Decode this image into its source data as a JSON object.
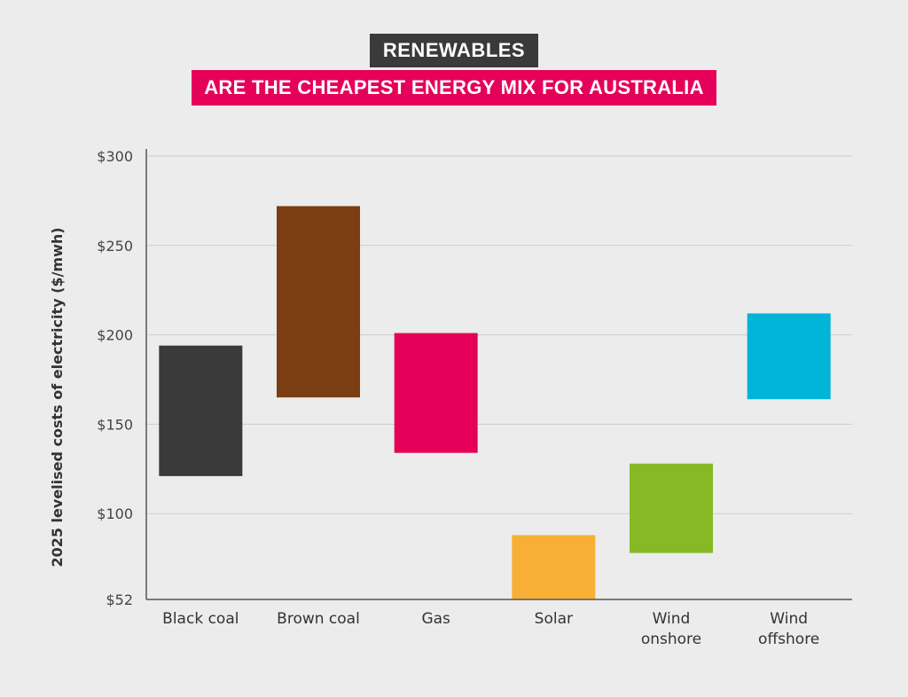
{
  "header": {
    "line1": "RENEWABLES",
    "line2": "ARE THE CHEAPEST ENERGY MIX FOR AUSTRALIA"
  },
  "chart_data": {
    "type": "bar",
    "subtype": "floating-range",
    "categories": [
      "Black coal",
      "Brown coal",
      "Gas",
      "Solar",
      "Wind onshore",
      "Wind offshore"
    ],
    "category_lines": [
      [
        "Black coal"
      ],
      [
        "Brown coal"
      ],
      [
        "Gas"
      ],
      [
        "Solar"
      ],
      [
        "Wind",
        "onshore"
      ],
      [
        "Wind",
        "offshore"
      ]
    ],
    "ranges": [
      {
        "low": 121,
        "high": 194
      },
      {
        "low": 165,
        "high": 272
      },
      {
        "low": 134,
        "high": 201
      },
      {
        "low": 52,
        "high": 88
      },
      {
        "low": 78,
        "high": 128
      },
      {
        "low": 164,
        "high": 212
      }
    ],
    "colors": [
      "#3a3a3a",
      "#7a3e12",
      "#e5005a",
      "#f7b035",
      "#86b925",
      "#00b5d8"
    ],
    "ylabel": "2025 levelised costs of electricity ($/mwh)",
    "ylim": [
      52,
      300
    ],
    "yticks": [
      52,
      100,
      150,
      200,
      250,
      300
    ],
    "ytick_labels": [
      "$52",
      "$100",
      "$150",
      "$200",
      "$250",
      "$300"
    ],
    "grid": true,
    "gridline_color": "#cccccc",
    "axis_color": "#555555"
  }
}
